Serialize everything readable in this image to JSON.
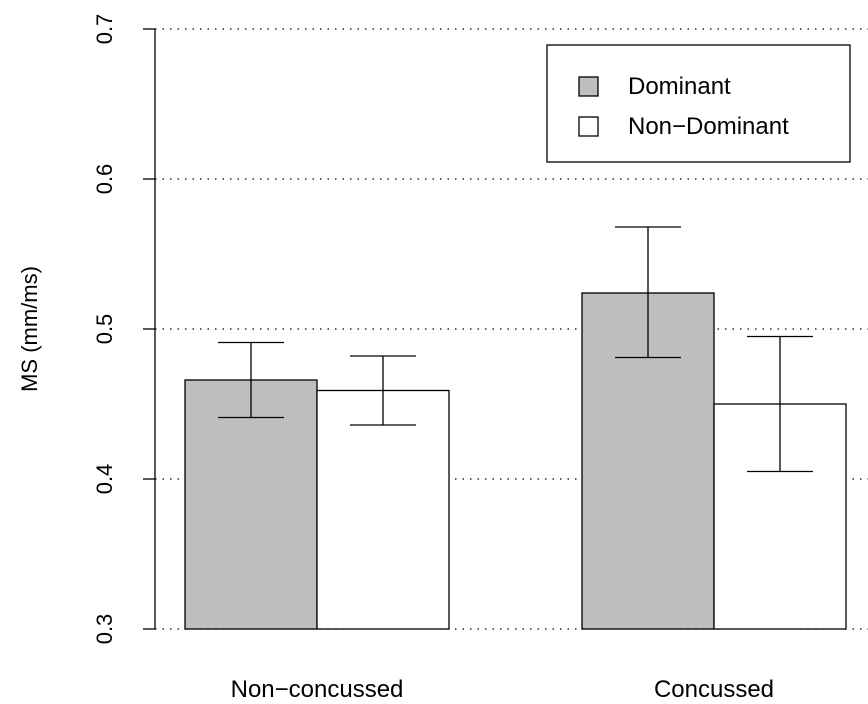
{
  "chart_data": {
    "type": "bar",
    "title": "",
    "xlabel": "",
    "ylabel": "MS (mm/ms)",
    "ylim": [
      0.3,
      0.7
    ],
    "yticks": [
      "0.3",
      "0.4",
      "0.5",
      "0.6",
      "0.7"
    ],
    "grid": true,
    "legend_position": "top-right",
    "categories": [
      "Non−concussed",
      "Concussed"
    ],
    "series": [
      {
        "name": "Dominant",
        "color": "#bebebe",
        "values": [
          0.466,
          0.524
        ],
        "error_low": [
          0.441,
          0.481
        ],
        "error_high": [
          0.491,
          0.568
        ]
      },
      {
        "name": "Non−Dominant",
        "color": "#ffffff",
        "values": [
          0.459,
          0.45
        ],
        "error_low": [
          0.436,
          0.405
        ],
        "error_high": [
          0.482,
          0.495
        ]
      }
    ]
  }
}
